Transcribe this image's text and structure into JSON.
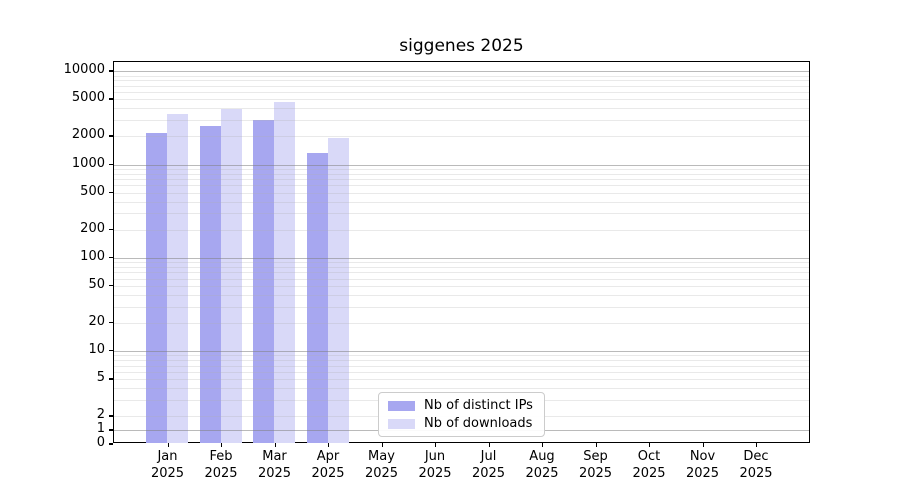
{
  "chart_data": {
    "type": "bar",
    "title": "siggenes 2025",
    "categories": [
      "Jan",
      "Feb",
      "Mar",
      "Apr",
      "May",
      "Jun",
      "Jul",
      "Aug",
      "Sep",
      "Oct",
      "Nov",
      "Dec"
    ],
    "year_label": "2025",
    "series": [
      {
        "name": "Nb of distinct IPs",
        "color": "#a7a7f0",
        "values": [
          2200,
          2600,
          3000,
          1340,
          null,
          null,
          null,
          null,
          null,
          null,
          null,
          null
        ]
      },
      {
        "name": "Nb of downloads",
        "color": "#d9d9f8",
        "values": [
          3500,
          3900,
          4700,
          1920,
          null,
          null,
          null,
          null,
          null,
          null,
          null,
          null
        ]
      }
    ],
    "y_axis": {
      "scale": "symlog",
      "linear_threshold": 2,
      "ylim": [
        0,
        12600
      ],
      "tick_values": [
        0,
        1,
        2,
        5,
        10,
        20,
        50,
        100,
        200,
        500,
        1000,
        2000,
        5000,
        10000
      ],
      "tick_labels": [
        "0",
        "1",
        "2",
        "5",
        "10",
        "20",
        "50",
        "100",
        "200",
        "500",
        "1000",
        "2000",
        "5000",
        "10000"
      ],
      "major_grid_values": [
        1,
        10,
        100,
        1000,
        10000
      ]
    },
    "grid": {
      "major_color": "#b5b5b5",
      "minor_color": "#e9e9e9",
      "enabled": true
    },
    "legend": {
      "position": "lower-center-inside"
    },
    "colors": {
      "background": "#ffffff",
      "spine": "#000000",
      "text": "#000000"
    }
  }
}
